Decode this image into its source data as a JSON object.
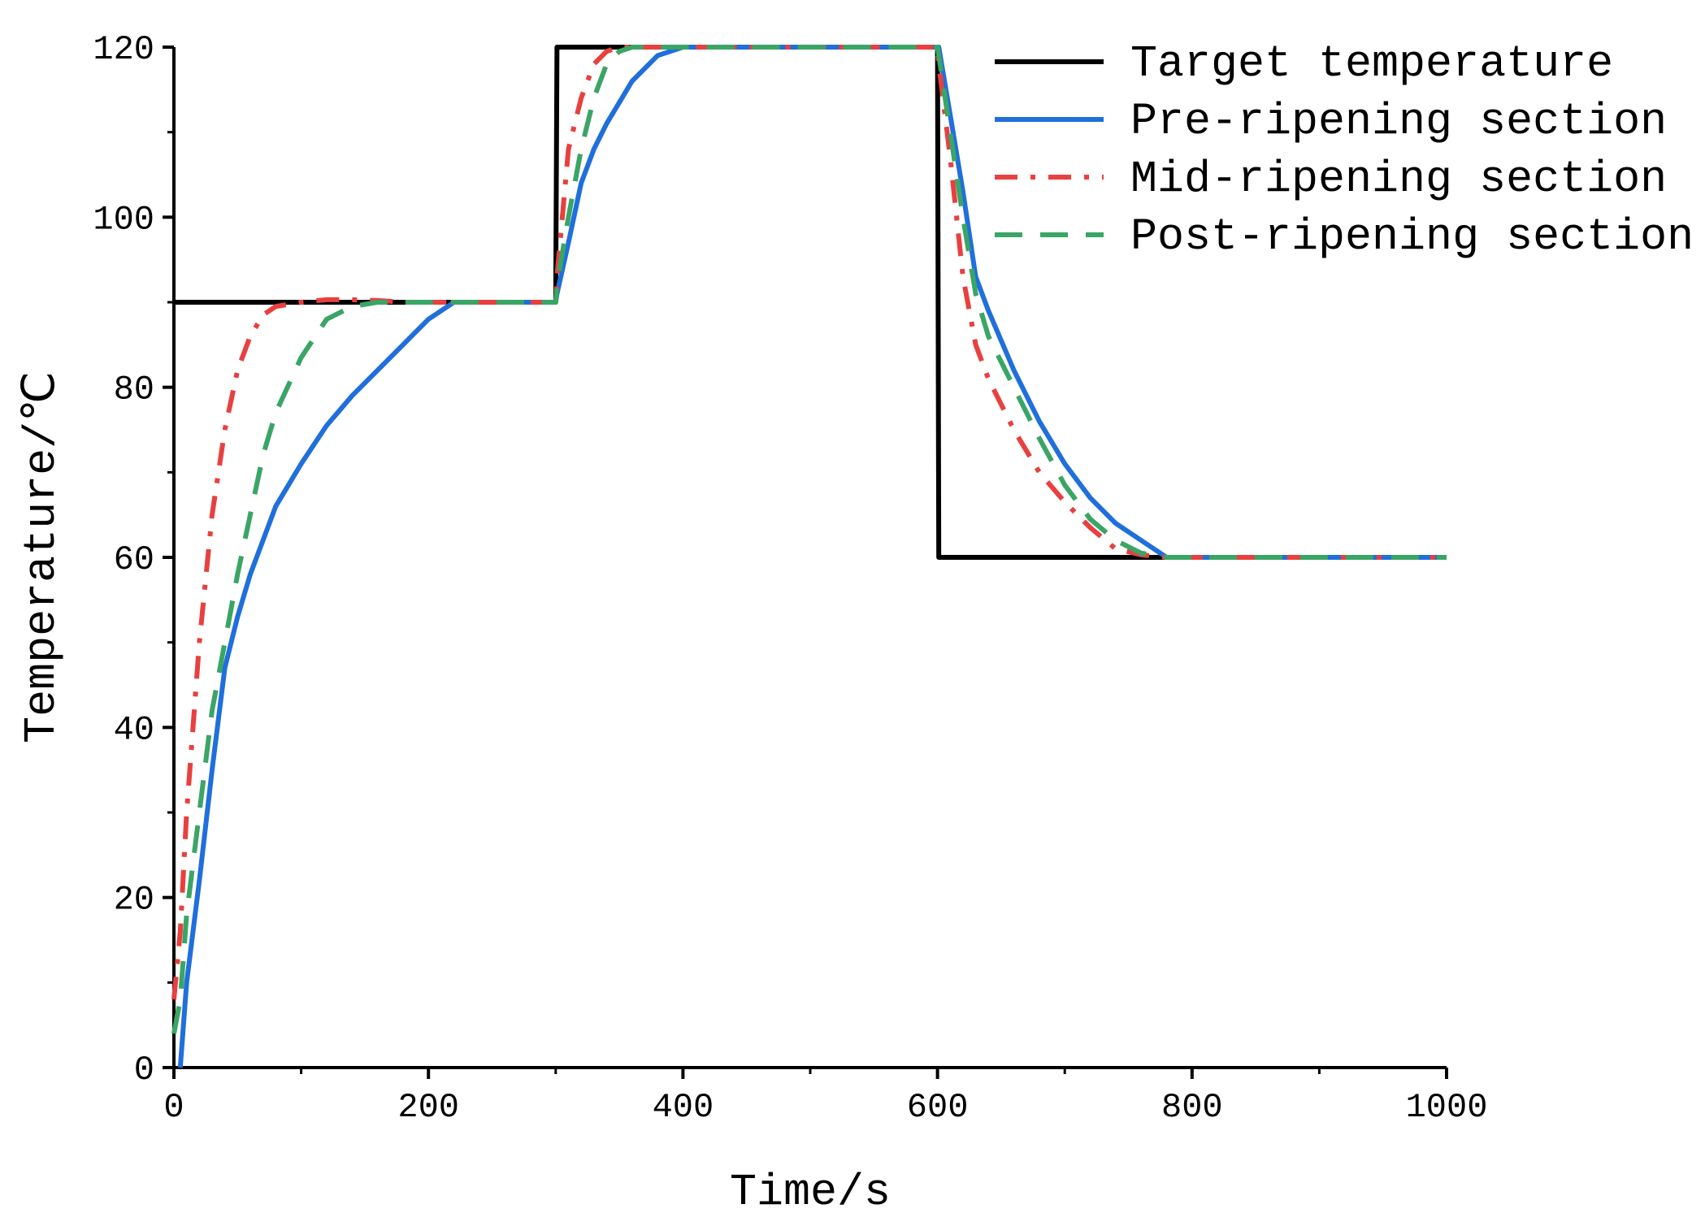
{
  "chart_data": {
    "type": "line",
    "xlabel": "Time/s",
    "ylabel": "Temperature/℃",
    "x": [
      0,
      5,
      10,
      20,
      30,
      40,
      50,
      60,
      70,
      80,
      100,
      120,
      140,
      160,
      180,
      200,
      220,
      250,
      300,
      301,
      310,
      320,
      330,
      340,
      350,
      360,
      380,
      400,
      500,
      600,
      601,
      610,
      620,
      630,
      640,
      660,
      680,
      700,
      720,
      740,
      760,
      780,
      800,
      900,
      1000
    ],
    "series": [
      {
        "name": "Target temperature",
        "color": "#000000",
        "dash": "solid",
        "values": [
          90,
          90,
          90,
          90,
          90,
          90,
          90,
          90,
          90,
          90,
          90,
          90,
          90,
          90,
          90,
          90,
          90,
          90,
          90,
          120,
          120,
          120,
          120,
          120,
          120,
          120,
          120,
          120,
          120,
          120,
          60,
          60,
          60,
          60,
          60,
          60,
          60,
          60,
          60,
          60,
          60,
          60,
          60,
          60,
          60
        ]
      },
      {
        "name": "Pre-ripening section",
        "color": "#1f6fdc",
        "dash": "solid",
        "values": [
          null,
          0,
          10,
          22,
          35,
          47,
          53,
          58,
          62,
          66,
          71,
          75.5,
          79,
          82,
          85,
          88,
          90,
          90,
          90,
          91,
          97,
          104,
          108,
          111,
          113.5,
          116,
          119,
          120,
          120,
          120,
          120,
          112,
          103,
          93,
          89,
          82,
          76,
          71,
          67,
          64,
          62,
          60,
          60,
          60,
          60
        ]
      },
      {
        "name": "Mid-ripening section",
        "color": "#e8403f",
        "dash": "dotdash",
        "values": [
          8,
          16,
          30,
          50,
          65,
          75,
          82,
          86,
          88.5,
          89.5,
          90,
          90.3,
          90.3,
          90.2,
          90,
          90,
          90,
          90,
          90,
          93,
          108,
          114,
          118,
          119.5,
          120,
          120,
          120,
          120,
          120,
          120,
          118,
          107,
          93,
          85,
          81,
          75,
          70,
          66.5,
          63.5,
          61,
          60.3,
          60,
          60,
          60,
          60
        ]
      },
      {
        "name": "Post-ripening section",
        "color": "#3aa565",
        "dash": "dash",
        "values": [
          4,
          8,
          18,
          30,
          42,
          50,
          58,
          65,
          72,
          77,
          83.5,
          88,
          89.5,
          90,
          90,
          90,
          90,
          90,
          90,
          92,
          100,
          108,
          114,
          118,
          119.5,
          120,
          120,
          120,
          120,
          120,
          119,
          110,
          100,
          91,
          86,
          80,
          74,
          68.5,
          64.5,
          62,
          60.5,
          60,
          60,
          60,
          60
        ]
      }
    ],
    "xlim": [
      0,
      1000
    ],
    "xticks": [
      0,
      200,
      400,
      600,
      800,
      1000
    ],
    "ylim": [
      0,
      120
    ],
    "yticks": [
      0,
      20,
      40,
      60,
      80,
      100,
      120
    ],
    "legend": "upper right"
  }
}
